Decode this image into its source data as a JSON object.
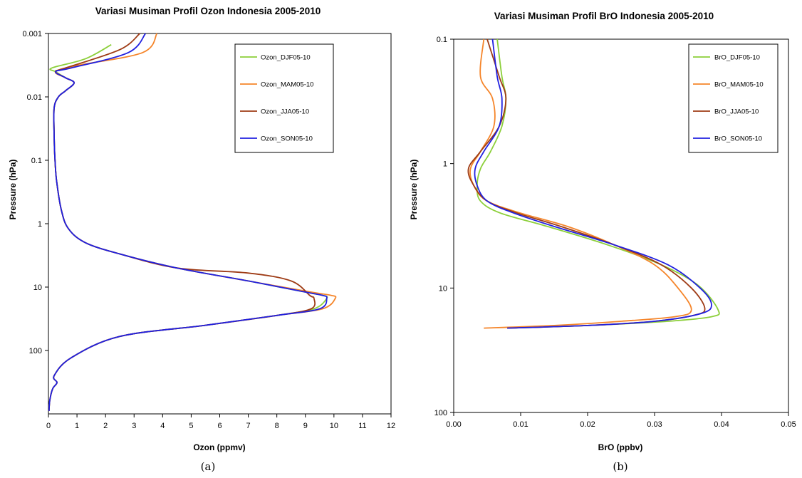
{
  "chart_data": [
    {
      "type": "line",
      "title": "Variasi Musiman Profil Ozon Indonesia 2005-2010",
      "xlabel": "Ozon (ppmv)",
      "ylabel": "Pressure (hPa)",
      "panel_label": "(a)",
      "xlim": [
        0,
        12
      ],
      "xticks": [
        "0",
        "1",
        "2",
        "3",
        "4",
        "5",
        "6",
        "7",
        "8",
        "9",
        "10",
        "11",
        "12"
      ],
      "ylim": [
        0.001,
        1000
      ],
      "yscale": "log",
      "y_reversed": true,
      "yticks": [
        0.001,
        0.01,
        0.1,
        1,
        10,
        100
      ],
      "ytick_labels": [
        "0.001",
        "0.01",
        "0.1",
        "1",
        "10",
        "100"
      ],
      "grid": false,
      "legend": "top-right",
      "series": [
        {
          "name": "Ozon_DJF05-10",
          "color": "#8ccf3a",
          "x": [
            0.02,
            0.05,
            0.15,
            0.3,
            0.2,
            0.8,
            2.5,
            5.5,
            8.0,
            9.3,
            9.75,
            9.6,
            9.0,
            7.0,
            4.5,
            2.5,
            1.3,
            0.7,
            0.45,
            0.28,
            0.22,
            0.2,
            0.2,
            0.35,
            0.6,
            0.9,
            0.6,
            0.25,
            0.12,
            1.3,
            2.2
          ],
          "y": [
            900,
            600,
            400,
            320,
            250,
            130,
            60,
            40,
            28,
            22,
            15,
            13.5,
            12,
            8,
            5,
            3,
            2,
            1.2,
            0.6,
            0.2,
            0.08,
            0.04,
            0.015,
            0.01,
            0.008,
            0.006,
            0.005,
            0.004,
            0.0035,
            0.0025,
            0.0015
          ]
        },
        {
          "name": "Ozon_MAM05-10",
          "color": "#f5852a",
          "x": [
            0.02,
            0.05,
            0.15,
            0.3,
            0.2,
            0.8,
            2.5,
            5.5,
            8.0,
            9.6,
            10.05,
            9.9,
            9.2,
            7.0,
            4.5,
            2.5,
            1.3,
            0.7,
            0.45,
            0.28,
            0.22,
            0.2,
            0.2,
            0.35,
            0.6,
            0.9,
            0.6,
            0.25,
            1.0,
            3.3,
            3.8
          ],
          "y": [
            900,
            600,
            400,
            320,
            250,
            130,
            60,
            40,
            28,
            22,
            15,
            13.5,
            12,
            8,
            5,
            3,
            2,
            1.2,
            0.6,
            0.2,
            0.08,
            0.04,
            0.015,
            0.01,
            0.008,
            0.006,
            0.005,
            0.004,
            0.0032,
            0.002,
            0.001
          ]
        },
        {
          "name": "Ozon_JJA05-10",
          "color": "#9e3b15",
          "x": [
            0.02,
            0.05,
            0.15,
            0.3,
            0.2,
            0.8,
            2.5,
            5.5,
            8.0,
            9.2,
            9.3,
            9.15,
            8.5,
            7.0,
            4.5,
            2.5,
            1.3,
            0.7,
            0.45,
            0.28,
            0.22,
            0.2,
            0.2,
            0.35,
            0.6,
            0.9,
            0.6,
            0.25,
            0.6,
            2.5,
            3.2
          ],
          "y": [
            900,
            600,
            400,
            320,
            250,
            130,
            60,
            40,
            28,
            22,
            15,
            13.5,
            8,
            6,
            5,
            3,
            2,
            1.2,
            0.6,
            0.2,
            0.08,
            0.04,
            0.015,
            0.01,
            0.008,
            0.006,
            0.005,
            0.004,
            0.0035,
            0.0018,
            0.001
          ]
        },
        {
          "name": "Ozon_SON05-10",
          "color": "#2020e0",
          "x": [
            0.02,
            0.05,
            0.15,
            0.3,
            0.2,
            0.8,
            2.5,
            5.5,
            8.0,
            9.5,
            9.75,
            9.6,
            9.0,
            7.0,
            4.5,
            2.5,
            1.3,
            0.7,
            0.45,
            0.28,
            0.22,
            0.2,
            0.2,
            0.35,
            0.6,
            0.9,
            0.6,
            0.25,
            0.8,
            2.8,
            3.4
          ],
          "y": [
            900,
            600,
            400,
            320,
            250,
            130,
            60,
            40,
            28,
            22,
            15,
            13.5,
            12,
            8,
            5,
            3,
            2,
            1.2,
            0.6,
            0.2,
            0.08,
            0.04,
            0.015,
            0.01,
            0.008,
            0.006,
            0.005,
            0.004,
            0.0035,
            0.002,
            0.001
          ]
        }
      ]
    },
    {
      "type": "line",
      "title": "Variasi Musiman Profil BrO Indonesia 2005-2010",
      "xlabel": "BrO (ppbv)",
      "ylabel": "Pressure (hPa)",
      "panel_label": "(b)",
      "xlim": [
        0,
        0.05
      ],
      "xticks": [
        "0.00",
        "0.01",
        "0.02",
        "0.03",
        "0.04",
        "0.05"
      ],
      "ylim": [
        0.1,
        100
      ],
      "yscale": "log",
      "y_reversed": true,
      "yticks": [
        0.1,
        1,
        10,
        100
      ],
      "ytick_labels": [
        "0.1",
        "1",
        "10",
        "100"
      ],
      "grid": false,
      "legend": "top-right",
      "series": [
        {
          "name": "BrO_DJF05-10",
          "color": "#8ccf3a",
          "x": [
            0.0065,
            0.0072,
            0.0078,
            0.0072,
            0.0055,
            0.004,
            0.0035,
            0.004,
            0.007,
            0.014,
            0.023,
            0.031,
            0.0365,
            0.0395,
            0.0385,
            0.032,
            0.02,
            0.008
          ],
          "y": [
            0.1,
            0.2,
            0.3,
            0.5,
            0.8,
            1.1,
            1.5,
            2.0,
            2.5,
            3.2,
            4.5,
            6.5,
            9.5,
            15,
            17,
            18.5,
            20,
            21
          ]
        },
        {
          "name": "BrO_MAM05-10",
          "color": "#f5852a",
          "x": [
            0.0045,
            0.004,
            0.0058,
            0.006,
            0.004,
            0.0025,
            0.003,
            0.005,
            0.01,
            0.017,
            0.024,
            0.03,
            0.0335,
            0.0355,
            0.033,
            0.025,
            0.015,
            0.0045
          ],
          "y": [
            0.1,
            0.2,
            0.3,
            0.5,
            0.8,
            1.1,
            1.5,
            2.0,
            2.5,
            3.2,
            4.5,
            6.5,
            10,
            15,
            17,
            18.5,
            20,
            21
          ]
        },
        {
          "name": "BrO_JJA05-10",
          "color": "#9e3b15",
          "x": [
            0.005,
            0.0068,
            0.0078,
            0.0068,
            0.004,
            0.0022,
            0.003,
            0.005,
            0.0095,
            0.016,
            0.024,
            0.031,
            0.0355,
            0.0375,
            0.036,
            0.03,
            0.02,
            0.008
          ],
          "y": [
            0.1,
            0.2,
            0.3,
            0.5,
            0.8,
            1.1,
            1.5,
            2.0,
            2.5,
            3.2,
            4.5,
            6.5,
            10,
            14.5,
            16.5,
            18.5,
            20,
            21
          ]
        },
        {
          "name": "BrO_SON05-10",
          "color": "#2020e0",
          "x": [
            0.0058,
            0.0065,
            0.0072,
            0.0068,
            0.0045,
            0.0032,
            0.0035,
            0.005,
            0.009,
            0.015,
            0.024,
            0.032,
            0.0368,
            0.0385,
            0.037,
            0.03,
            0.02,
            0.008
          ],
          "y": [
            0.1,
            0.2,
            0.3,
            0.5,
            0.8,
            1.1,
            1.5,
            2.0,
            2.5,
            3.2,
            4.5,
            6.5,
            10,
            13.5,
            16,
            18.5,
            20,
            21
          ]
        }
      ]
    }
  ]
}
